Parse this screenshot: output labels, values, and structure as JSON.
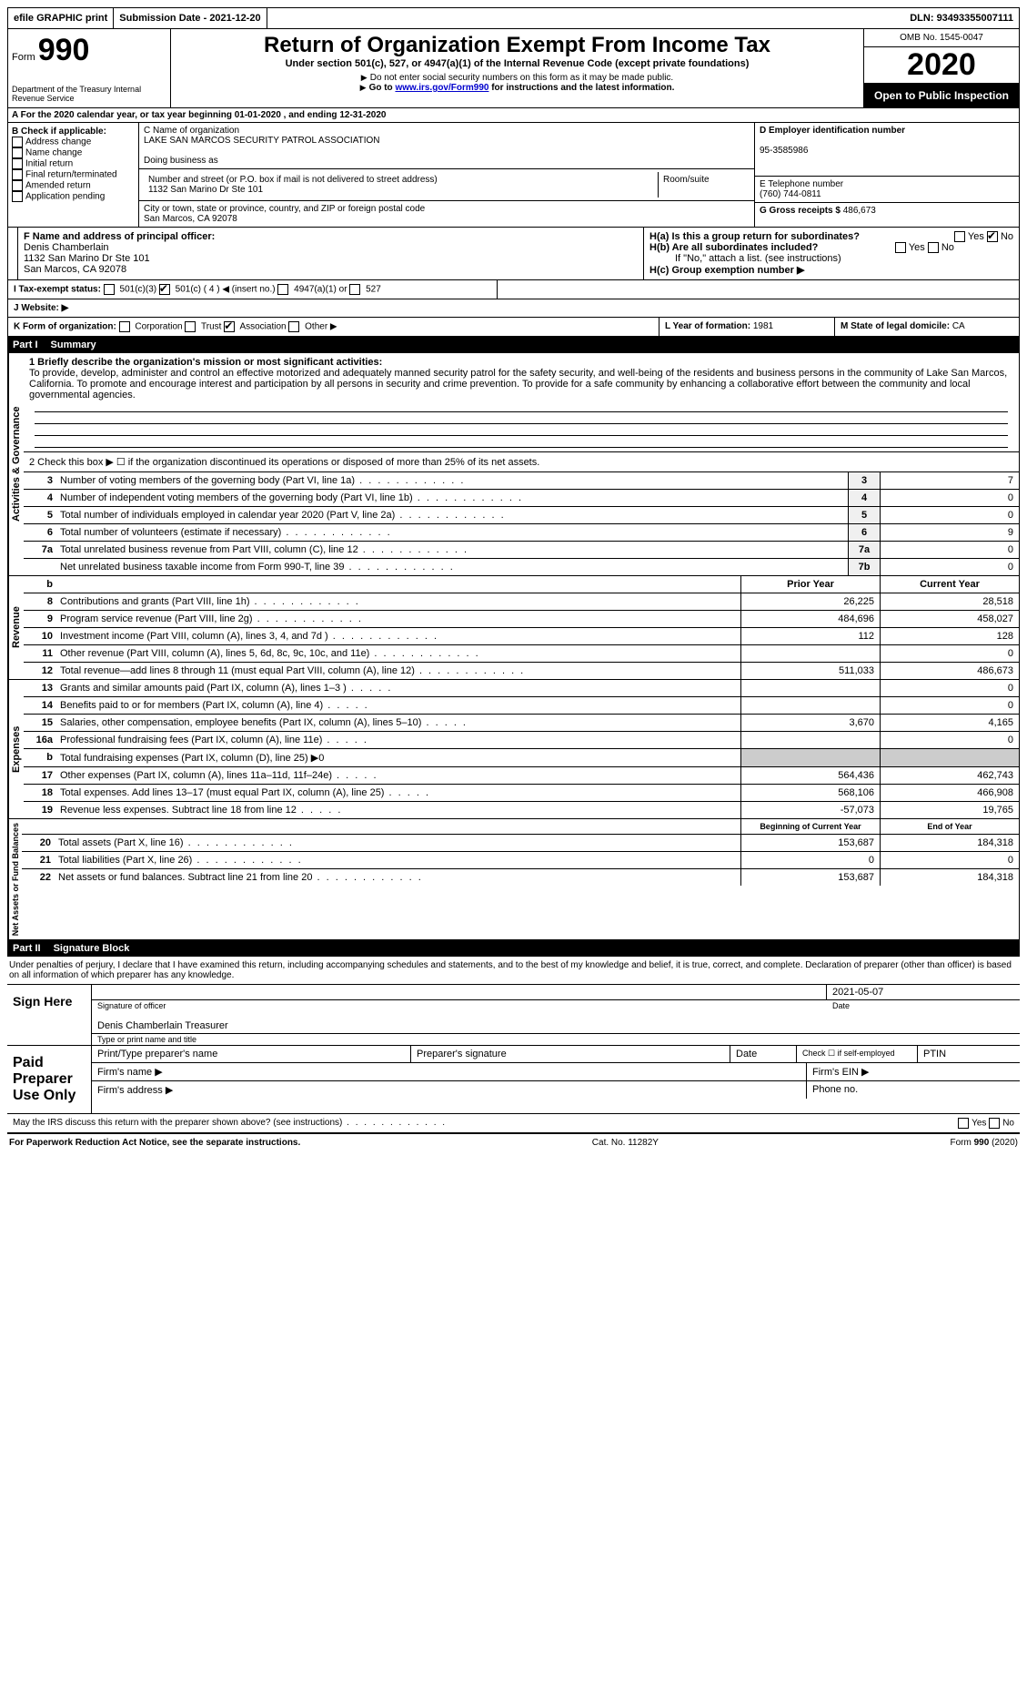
{
  "topbar": {
    "efile": "efile GRAPHIC print",
    "submission": "Submission Date - 2021-12-20",
    "dln_label": "DLN:",
    "dln": "93493355007111"
  },
  "header": {
    "form_label": "Form",
    "form_num": "990",
    "dept": "Department of the Treasury Internal Revenue Service",
    "title": "Return of Organization Exempt From Income Tax",
    "subtitle": "Under section 501(c), 527, or 4947(a)(1) of the Internal Revenue Code (except private foundations)",
    "note1": "Do not enter social security numbers on this form as it may be made public.",
    "note2_pre": "Go to ",
    "note2_link": "www.irs.gov/Form990",
    "note2_post": " for instructions and the latest information.",
    "omb": "OMB No. 1545-0047",
    "year": "2020",
    "open": "Open to Public Inspection"
  },
  "sectionA": "A For the 2020 calendar year, or tax year beginning 01-01-2020   , and ending 12-31-2020",
  "colB": {
    "heading": "B Check if applicable:",
    "items": [
      "Address change",
      "Name change",
      "Initial return",
      "Final return/terminated",
      "Amended return",
      "Application pending"
    ]
  },
  "colC": {
    "name_label": "C Name of organization",
    "name": "LAKE SAN MARCOS SECURITY PATROL ASSOCIATION",
    "dba_label": "Doing business as",
    "addr_label": "Number and street (or P.O. box if mail is not delivered to street address)",
    "addr": "1132 San Marino Dr Ste 101",
    "room_label": "Room/suite",
    "city_label": "City or town, state or province, country, and ZIP or foreign postal code",
    "city": "San Marcos, CA  92078"
  },
  "colD": {
    "d_label": "D Employer identification number",
    "ein": "95-3585986",
    "e_label": "E Telephone number",
    "phone": "(760) 744-0811",
    "g_label": "G Gross receipts $",
    "gross": "486,673"
  },
  "rowF": {
    "f_label": "F Name and address of principal officer:",
    "name": "Denis Chamberlain",
    "addr1": "1132 San Marino Dr Ste 101",
    "addr2": "San Marcos, CA  92078",
    "ha_label": "H(a)  Is this a group return for subordinates?",
    "hb_label": "H(b)  Are all subordinates included?",
    "hb_note": "If \"No,\" attach a list. (see instructions)",
    "hc_label": "H(c)  Group exemption number ▶",
    "yes": "Yes",
    "no": "No"
  },
  "rowI": {
    "label": "I   Tax-exempt status:",
    "opt1": "501(c)(3)",
    "opt2": "501(c) ( 4 ) ◀ (insert no.)",
    "opt3": "4947(a)(1) or",
    "opt4": "527"
  },
  "rowJ": {
    "label": "J   Website: ▶"
  },
  "rowK": {
    "label": "K Form of organization:",
    "corp": "Corporation",
    "trust": "Trust",
    "assoc": "Association",
    "other": "Other ▶",
    "l_label": "L Year of formation:",
    "l_val": "1981",
    "m_label": "M State of legal domicile:",
    "m_val": "CA"
  },
  "part1": {
    "num": "Part I",
    "title": "Summary"
  },
  "mission": {
    "line1_label": "1   Briefly describe the organization's mission or most significant activities:",
    "text": "To provide, develop, administer and control an effective motorized and adequately manned security patrol for the safety security, and well-being of the residents and business persons in the community of Lake San Marcos, California. To promote and encourage interest and participation by all persons in security and crime prevention. To provide for a safe community by enhancing a collaborative effort between the community and local governmental agencies."
  },
  "line2": "2   Check this box ▶ ☐  if the organization discontinued its operations or disposed of more than 25% of its net assets.",
  "governance_lines": [
    {
      "n": "3",
      "label": "Number of voting members of the governing body (Part VI, line 1a)",
      "box": "3",
      "val": "7"
    },
    {
      "n": "4",
      "label": "Number of independent voting members of the governing body (Part VI, line 1b)",
      "box": "4",
      "val": "0"
    },
    {
      "n": "5",
      "label": "Total number of individuals employed in calendar year 2020 (Part V, line 2a)",
      "box": "5",
      "val": "0"
    },
    {
      "n": "6",
      "label": "Total number of volunteers (estimate if necessary)",
      "box": "6",
      "val": "9"
    },
    {
      "n": "7a",
      "label": "Total unrelated business revenue from Part VIII, column (C), line 12",
      "box": "7a",
      "val": "0"
    },
    {
      "n": "",
      "label": "Net unrelated business taxable income from Form 990-T, line 39",
      "box": "7b",
      "val": "0"
    }
  ],
  "rev_hdr": {
    "b": "b",
    "prior": "Prior Year",
    "current": "Current Year"
  },
  "revenue_lines": [
    {
      "n": "8",
      "label": "Contributions and grants (Part VIII, line 1h)",
      "prior": "26,225",
      "cur": "28,518"
    },
    {
      "n": "9",
      "label": "Program service revenue (Part VIII, line 2g)",
      "prior": "484,696",
      "cur": "458,027"
    },
    {
      "n": "10",
      "label": "Investment income (Part VIII, column (A), lines 3, 4, and 7d )",
      "prior": "112",
      "cur": "128"
    },
    {
      "n": "11",
      "label": "Other revenue (Part VIII, column (A), lines 5, 6d, 8c, 9c, 10c, and 11e)",
      "prior": "",
      "cur": "0"
    },
    {
      "n": "12",
      "label": "Total revenue—add lines 8 through 11 (must equal Part VIII, column (A), line 12)",
      "prior": "511,033",
      "cur": "486,673"
    }
  ],
  "expense_lines": [
    {
      "n": "13",
      "label": "Grants and similar amounts paid (Part IX, column (A), lines 1–3 )",
      "prior": "",
      "cur": "0"
    },
    {
      "n": "14",
      "label": "Benefits paid to or for members (Part IX, column (A), line 4)",
      "prior": "",
      "cur": "0"
    },
    {
      "n": "15",
      "label": "Salaries, other compensation, employee benefits (Part IX, column (A), lines 5–10)",
      "prior": "3,670",
      "cur": "4,165"
    },
    {
      "n": "16a",
      "label": "Professional fundraising fees (Part IX, column (A), line 11e)",
      "prior": "",
      "cur": "0"
    },
    {
      "n": "b",
      "label": "Total fundraising expenses (Part IX, column (D), line 25) ▶0",
      "prior": "__shade__",
      "cur": "__shade__"
    },
    {
      "n": "17",
      "label": "Other expenses (Part IX, column (A), lines 11a–11d, 11f–24e)",
      "prior": "564,436",
      "cur": "462,743"
    },
    {
      "n": "18",
      "label": "Total expenses. Add lines 13–17 (must equal Part IX, column (A), line 25)",
      "prior": "568,106",
      "cur": "466,908"
    },
    {
      "n": "19",
      "label": "Revenue less expenses. Subtract line 18 from line 12",
      "prior": "-57,073",
      "cur": "19,765"
    }
  ],
  "net_hdr": {
    "prior": "Beginning of Current Year",
    "current": "End of Year"
  },
  "net_lines": [
    {
      "n": "20",
      "label": "Total assets (Part X, line 16)",
      "prior": "153,687",
      "cur": "184,318"
    },
    {
      "n": "21",
      "label": "Total liabilities (Part X, line 26)",
      "prior": "0",
      "cur": "0"
    },
    {
      "n": "22",
      "label": "Net assets or fund balances. Subtract line 21 from line 20",
      "prior": "153,687",
      "cur": "184,318"
    }
  ],
  "vlabels": {
    "gov": "Activities & Governance",
    "rev": "Revenue",
    "exp": "Expenses",
    "net": "Net Assets or Fund Balances"
  },
  "part2": {
    "num": "Part II",
    "title": "Signature Block"
  },
  "perjury": "Under penalties of perjury, I declare that I have examined this return, including accompanying schedules and statements, and to the best of my knowledge and belief, it is true, correct, and complete. Declaration of preparer (other than officer) is based on all information of which preparer has any knowledge.",
  "sign": {
    "here": "Sign Here",
    "sig_label": "Signature of officer",
    "date_label": "Date",
    "date": "2021-05-07",
    "name_line": "Denis Chamberlain  Treasurer",
    "name_label": "Type or print name and title"
  },
  "preparer": {
    "title": "Paid Preparer Use Only",
    "pname": "Print/Type preparer's name",
    "psig": "Preparer's signature",
    "pdate": "Date",
    "pcheck": "Check ☐ if self-employed",
    "ptin": "PTIN",
    "fname": "Firm's name    ▶",
    "faddr": "Firm's address ▶",
    "fein": "Firm's EIN ▶",
    "fphone": "Phone no."
  },
  "discuss": "May the IRS discuss this return with the preparer shown above? (see instructions)",
  "footer": {
    "left": "For Paperwork Reduction Act Notice, see the separate instructions.",
    "mid": "Cat. No. 11282Y",
    "right": "Form 990 (2020)"
  }
}
